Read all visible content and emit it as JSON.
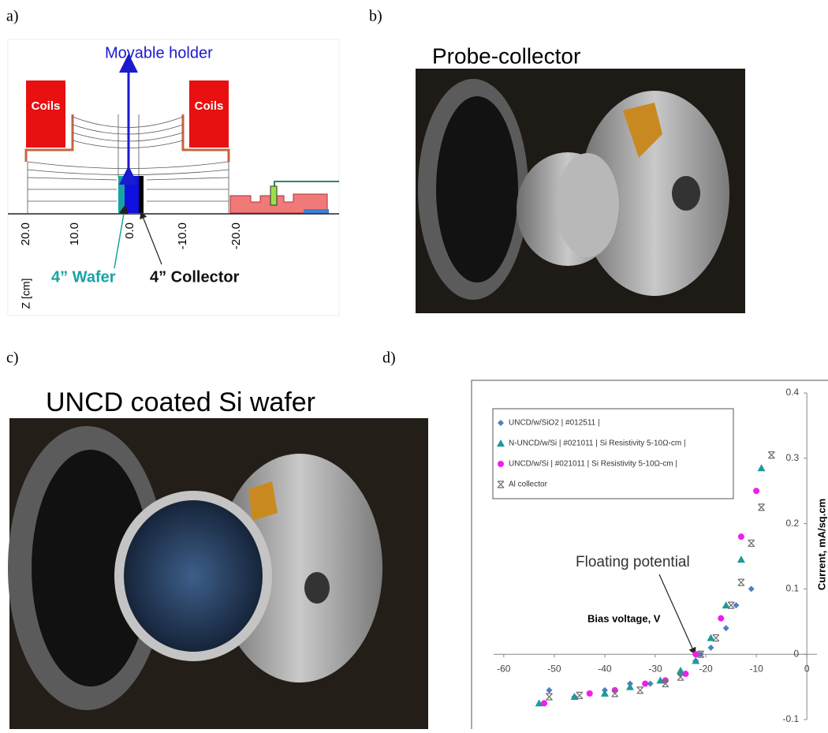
{
  "panel_a": {
    "label": "a)",
    "title": "Movable holder",
    "coils": [
      "Coils",
      "Coils"
    ],
    "axis_ticks": [
      "20.0",
      "10.0",
      "0.0",
      "-10.0",
      "-20.0"
    ],
    "axis_label": "Z [cm]",
    "wafer": "4” Wafer",
    "collector": "4” Collector"
  },
  "panel_b": {
    "label": "b)",
    "title": "Probe-collector"
  },
  "panel_c": {
    "label": "c)",
    "title": "UNCD  coated Si wafer"
  },
  "panel_d": {
    "label": "d)"
  },
  "chart_data": {
    "type": "scatter",
    "xlabel": "Bias voltage, V",
    "ylabel": "Current, mA/sq.cm",
    "annotation": "Floating potential",
    "xlim": [
      -62,
      2
    ],
    "ylim": [
      -0.1,
      0.4
    ],
    "xticks": [
      -60,
      -50,
      -40,
      -30,
      -20,
      -10,
      0
    ],
    "yticks": [
      -0.1,
      0,
      0.1,
      0.2,
      0.3,
      0.4
    ],
    "legend": "top-left",
    "series": [
      {
        "name": "UNCD/w/SiO2 | #012511 |",
        "color": "#4f81bd",
        "marker": "diamond",
        "x": [
          -51,
          -46,
          -40,
          -35,
          -31,
          -28,
          -25,
          -22,
          -21,
          -19,
          -16,
          -14,
          -11
        ],
        "values": [
          -0.055,
          -0.065,
          -0.055,
          -0.045,
          -0.045,
          -0.04,
          -0.03,
          -0.01,
          0,
          0.01,
          0.04,
          0.075,
          0.1
        ]
      },
      {
        "name": "N-UNCD/w/Si | #021011 | Si Resistivity 5-10Ω-cm |",
        "color": "#1f9a9a",
        "marker": "triangle",
        "x": [
          -53,
          -46,
          -40,
          -35,
          -29,
          -25,
          -22,
          -19,
          -16,
          -13,
          -9
        ],
        "values": [
          -0.075,
          -0.065,
          -0.06,
          -0.05,
          -0.04,
          -0.025,
          -0.01,
          0.025,
          0.075,
          0.145,
          0.285
        ]
      },
      {
        "name": "UNCD/w/Si | #021011 | Si Resistivity 5-10Ω-cm |",
        "color": "#f01df0",
        "marker": "circle",
        "x": [
          -52,
          -43,
          -38,
          -32,
          -28,
          -24,
          -22,
          -17,
          -13,
          -10
        ],
        "values": [
          -0.075,
          -0.06,
          -0.055,
          -0.045,
          -0.04,
          -0.03,
          0,
          0.055,
          0.18,
          0.25
        ]
      },
      {
        "name": "Al collector",
        "color": "#6f6f6f",
        "marker": "asterisk",
        "x": [
          -51,
          -45,
          -38,
          -33,
          -28,
          -25,
          -21,
          -18,
          -15,
          -13,
          -11,
          -9,
          -7
        ],
        "values": [
          -0.065,
          -0.063,
          -0.06,
          -0.055,
          -0.045,
          -0.035,
          0,
          0.025,
          0.075,
          0.11,
          0.17,
          0.225,
          0.305
        ]
      }
    ]
  }
}
